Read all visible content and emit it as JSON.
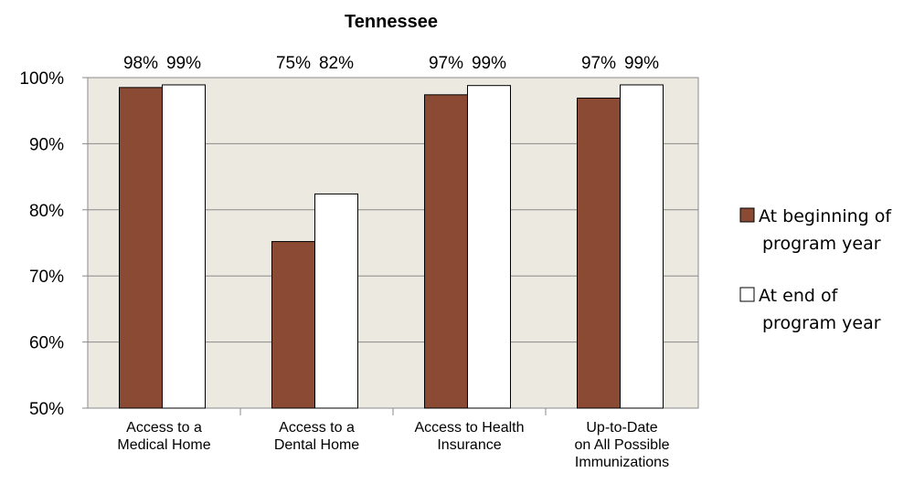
{
  "chart_data": {
    "type": "bar",
    "title": "Tennessee",
    "categories": [
      [
        "Access to a",
        "Medical Home"
      ],
      [
        "Access to a",
        "Dental Home"
      ],
      [
        "Access to Health",
        "Insurance"
      ],
      [
        "Up-to-Date",
        "on All Possible",
        "Immunizations"
      ]
    ],
    "series": [
      {
        "name": [
          "At beginning of",
          "program year"
        ],
        "color": "#8b4a33",
        "values": [
          98.5,
          75.2,
          97.4,
          96.9
        ],
        "labels": [
          "98%",
          "75%",
          "97%",
          "97%"
        ]
      },
      {
        "name": [
          "At end of",
          "program year"
        ],
        "color": "#ffffff",
        "values": [
          98.9,
          82.4,
          98.8,
          98.9
        ],
        "labels": [
          "99%",
          "82%",
          "99%",
          "99%"
        ]
      }
    ],
    "ylim": [
      50,
      100
    ],
    "yticks": [
      "50%",
      "60%",
      "70%",
      "80%",
      "90%",
      "100%"
    ],
    "ytick_values": [
      50,
      60,
      70,
      80,
      90,
      100
    ],
    "plot_background": "#ece9e1",
    "gridlines": true,
    "legend_position": "right",
    "xlabel": "",
    "ylabel": ""
  }
}
